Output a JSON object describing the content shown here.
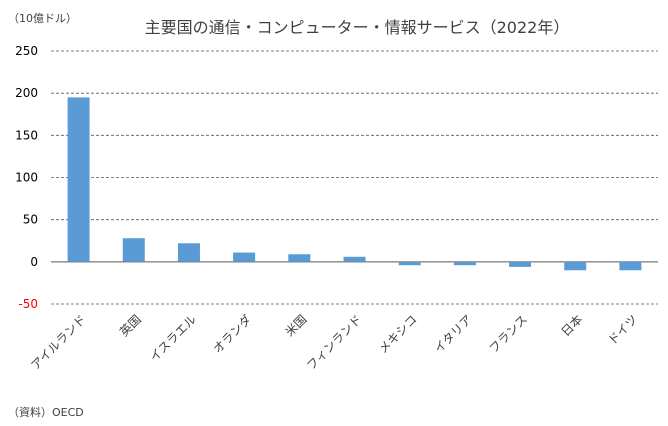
{
  "chart_data": {
    "type": "bar",
    "title": "主要国の通信・コンピューター・情報サービス（2022年）",
    "unit_label": "（10億ドル）",
    "source": "（資料）OECD",
    "categories": [
      "アイルランド",
      "英国",
      "イスラエル",
      "オランダ",
      "米国",
      "フィンランド",
      "メキシコ",
      "イタリア",
      "フランス",
      "日本",
      "ドイツ"
    ],
    "values": [
      195,
      28,
      22,
      11,
      9,
      6,
      -4,
      -4,
      -6,
      -10,
      -10
    ],
    "ylim": [
      -50,
      250
    ],
    "yticks": [
      {
        "value": 250,
        "label": "250",
        "color": "#000000"
      },
      {
        "value": 200,
        "label": "200",
        "color": "#000000"
      },
      {
        "value": 150,
        "label": "150",
        "color": "#000000"
      },
      {
        "value": 100,
        "label": "100",
        "color": "#000000"
      },
      {
        "value": 50,
        "label": "50",
        "color": "#000000"
      },
      {
        "value": 0,
        "label": "0",
        "color": "#000000"
      },
      {
        "value": -50,
        "label": "-50",
        "color": "#ff0000"
      }
    ],
    "bar_color": "#5b9bd5",
    "grid": "dashed",
    "legend": "none"
  }
}
